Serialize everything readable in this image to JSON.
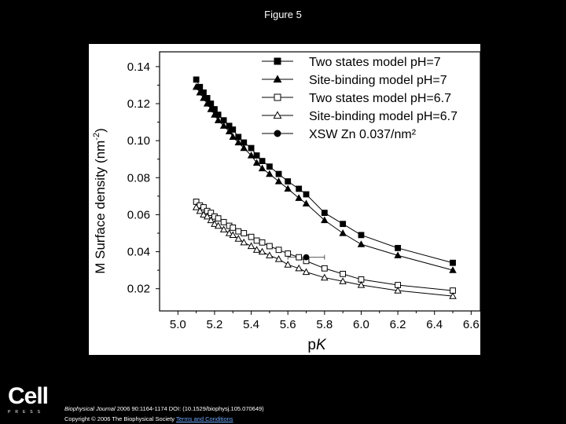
{
  "figure_title": "Figure 5",
  "logo": {
    "word": "Cell",
    "sub": "PRESS"
  },
  "citation": {
    "journal": "Biophysical Journal",
    "details": "2006 90:1164-1174 DOI: (10.1529/biophysj.105.070649)",
    "copyright": "Copyright © 2006 The Biophysical Society",
    "terms_link": "Terms and Conditions"
  },
  "chart_data": {
    "type": "line",
    "title": "",
    "xlabel": "pK",
    "ylabel": "M Surface density (nm⁻²)",
    "xlim": [
      4.9,
      6.65
    ],
    "ylim": [
      0.008,
      0.148
    ],
    "xticks": [
      5.0,
      5.2,
      5.4,
      5.6,
      5.8,
      6.0,
      6.2,
      6.4,
      6.6
    ],
    "yticks": [
      0.02,
      0.04,
      0.06,
      0.08,
      0.1,
      0.12,
      0.14
    ],
    "xtick_labels": [
      "5.0",
      "5.2",
      "5.4",
      "5.6",
      "5.8",
      "6.0",
      "6.2",
      "6.4",
      "6.6"
    ],
    "ytick_labels": [
      "0.02",
      "0.04",
      "0.06",
      "0.08",
      "0.10",
      "0.12",
      "0.14"
    ],
    "legend_position": "top-right",
    "series": [
      {
        "name": "Two states model  pH=7",
        "marker": "square-filled",
        "x": [
          5.1,
          5.12,
          5.14,
          5.16,
          5.18,
          5.2,
          5.22,
          5.25,
          5.28,
          5.3,
          5.33,
          5.36,
          5.4,
          5.43,
          5.46,
          5.5,
          5.55,
          5.6,
          5.66,
          5.7,
          5.8,
          5.9,
          6.0,
          6.2,
          6.5
        ],
        "y": [
          0.133,
          0.129,
          0.126,
          0.123,
          0.12,
          0.117,
          0.114,
          0.111,
          0.108,
          0.106,
          0.102,
          0.099,
          0.096,
          0.092,
          0.089,
          0.086,
          0.082,
          0.078,
          0.074,
          0.071,
          0.061,
          0.055,
          0.049,
          0.042,
          0.034
        ]
      },
      {
        "name": "Site-binding model pH=7",
        "marker": "triangle-filled",
        "x": [
          5.1,
          5.12,
          5.14,
          5.16,
          5.18,
          5.2,
          5.22,
          5.25,
          5.28,
          5.3,
          5.33,
          5.36,
          5.4,
          5.43,
          5.46,
          5.5,
          5.55,
          5.6,
          5.66,
          5.7,
          5.8,
          5.9,
          6.0,
          6.2,
          6.5
        ],
        "y": [
          0.129,
          0.126,
          0.123,
          0.12,
          0.117,
          0.114,
          0.111,
          0.108,
          0.105,
          0.102,
          0.099,
          0.096,
          0.092,
          0.088,
          0.085,
          0.082,
          0.078,
          0.074,
          0.069,
          0.066,
          0.057,
          0.05,
          0.044,
          0.038,
          0.03
        ]
      },
      {
        "name": "Two states model   pH=6.7",
        "marker": "square-open",
        "x": [
          5.1,
          5.12,
          5.14,
          5.16,
          5.18,
          5.2,
          5.22,
          5.25,
          5.28,
          5.3,
          5.33,
          5.36,
          5.4,
          5.43,
          5.46,
          5.5,
          5.55,
          5.6,
          5.66,
          5.7,
          5.8,
          5.9,
          6.0,
          6.2,
          6.5
        ],
        "y": [
          0.067,
          0.065,
          0.064,
          0.062,
          0.061,
          0.059,
          0.058,
          0.056,
          0.054,
          0.053,
          0.051,
          0.05,
          0.048,
          0.046,
          0.045,
          0.043,
          0.041,
          0.039,
          0.037,
          0.035,
          0.031,
          0.028,
          0.025,
          0.022,
          0.019
        ]
      },
      {
        "name": "Site-binding model pH=6.7",
        "marker": "triangle-open",
        "x": [
          5.1,
          5.12,
          5.14,
          5.16,
          5.18,
          5.2,
          5.22,
          5.25,
          5.28,
          5.3,
          5.33,
          5.36,
          5.4,
          5.43,
          5.46,
          5.5,
          5.55,
          5.6,
          5.66,
          5.7,
          5.8,
          5.9,
          6.0,
          6.2,
          6.5
        ],
        "y": [
          0.064,
          0.062,
          0.06,
          0.059,
          0.057,
          0.055,
          0.054,
          0.052,
          0.05,
          0.049,
          0.047,
          0.045,
          0.043,
          0.041,
          0.04,
          0.038,
          0.036,
          0.033,
          0.031,
          0.029,
          0.026,
          0.024,
          0.022,
          0.019,
          0.016
        ]
      },
      {
        "name": "XSW Zn 0.037/nm²",
        "marker": "circle-filled",
        "x": [
          5.7
        ],
        "y": [
          0.037
        ],
        "xerr": 0.1
      }
    ]
  }
}
